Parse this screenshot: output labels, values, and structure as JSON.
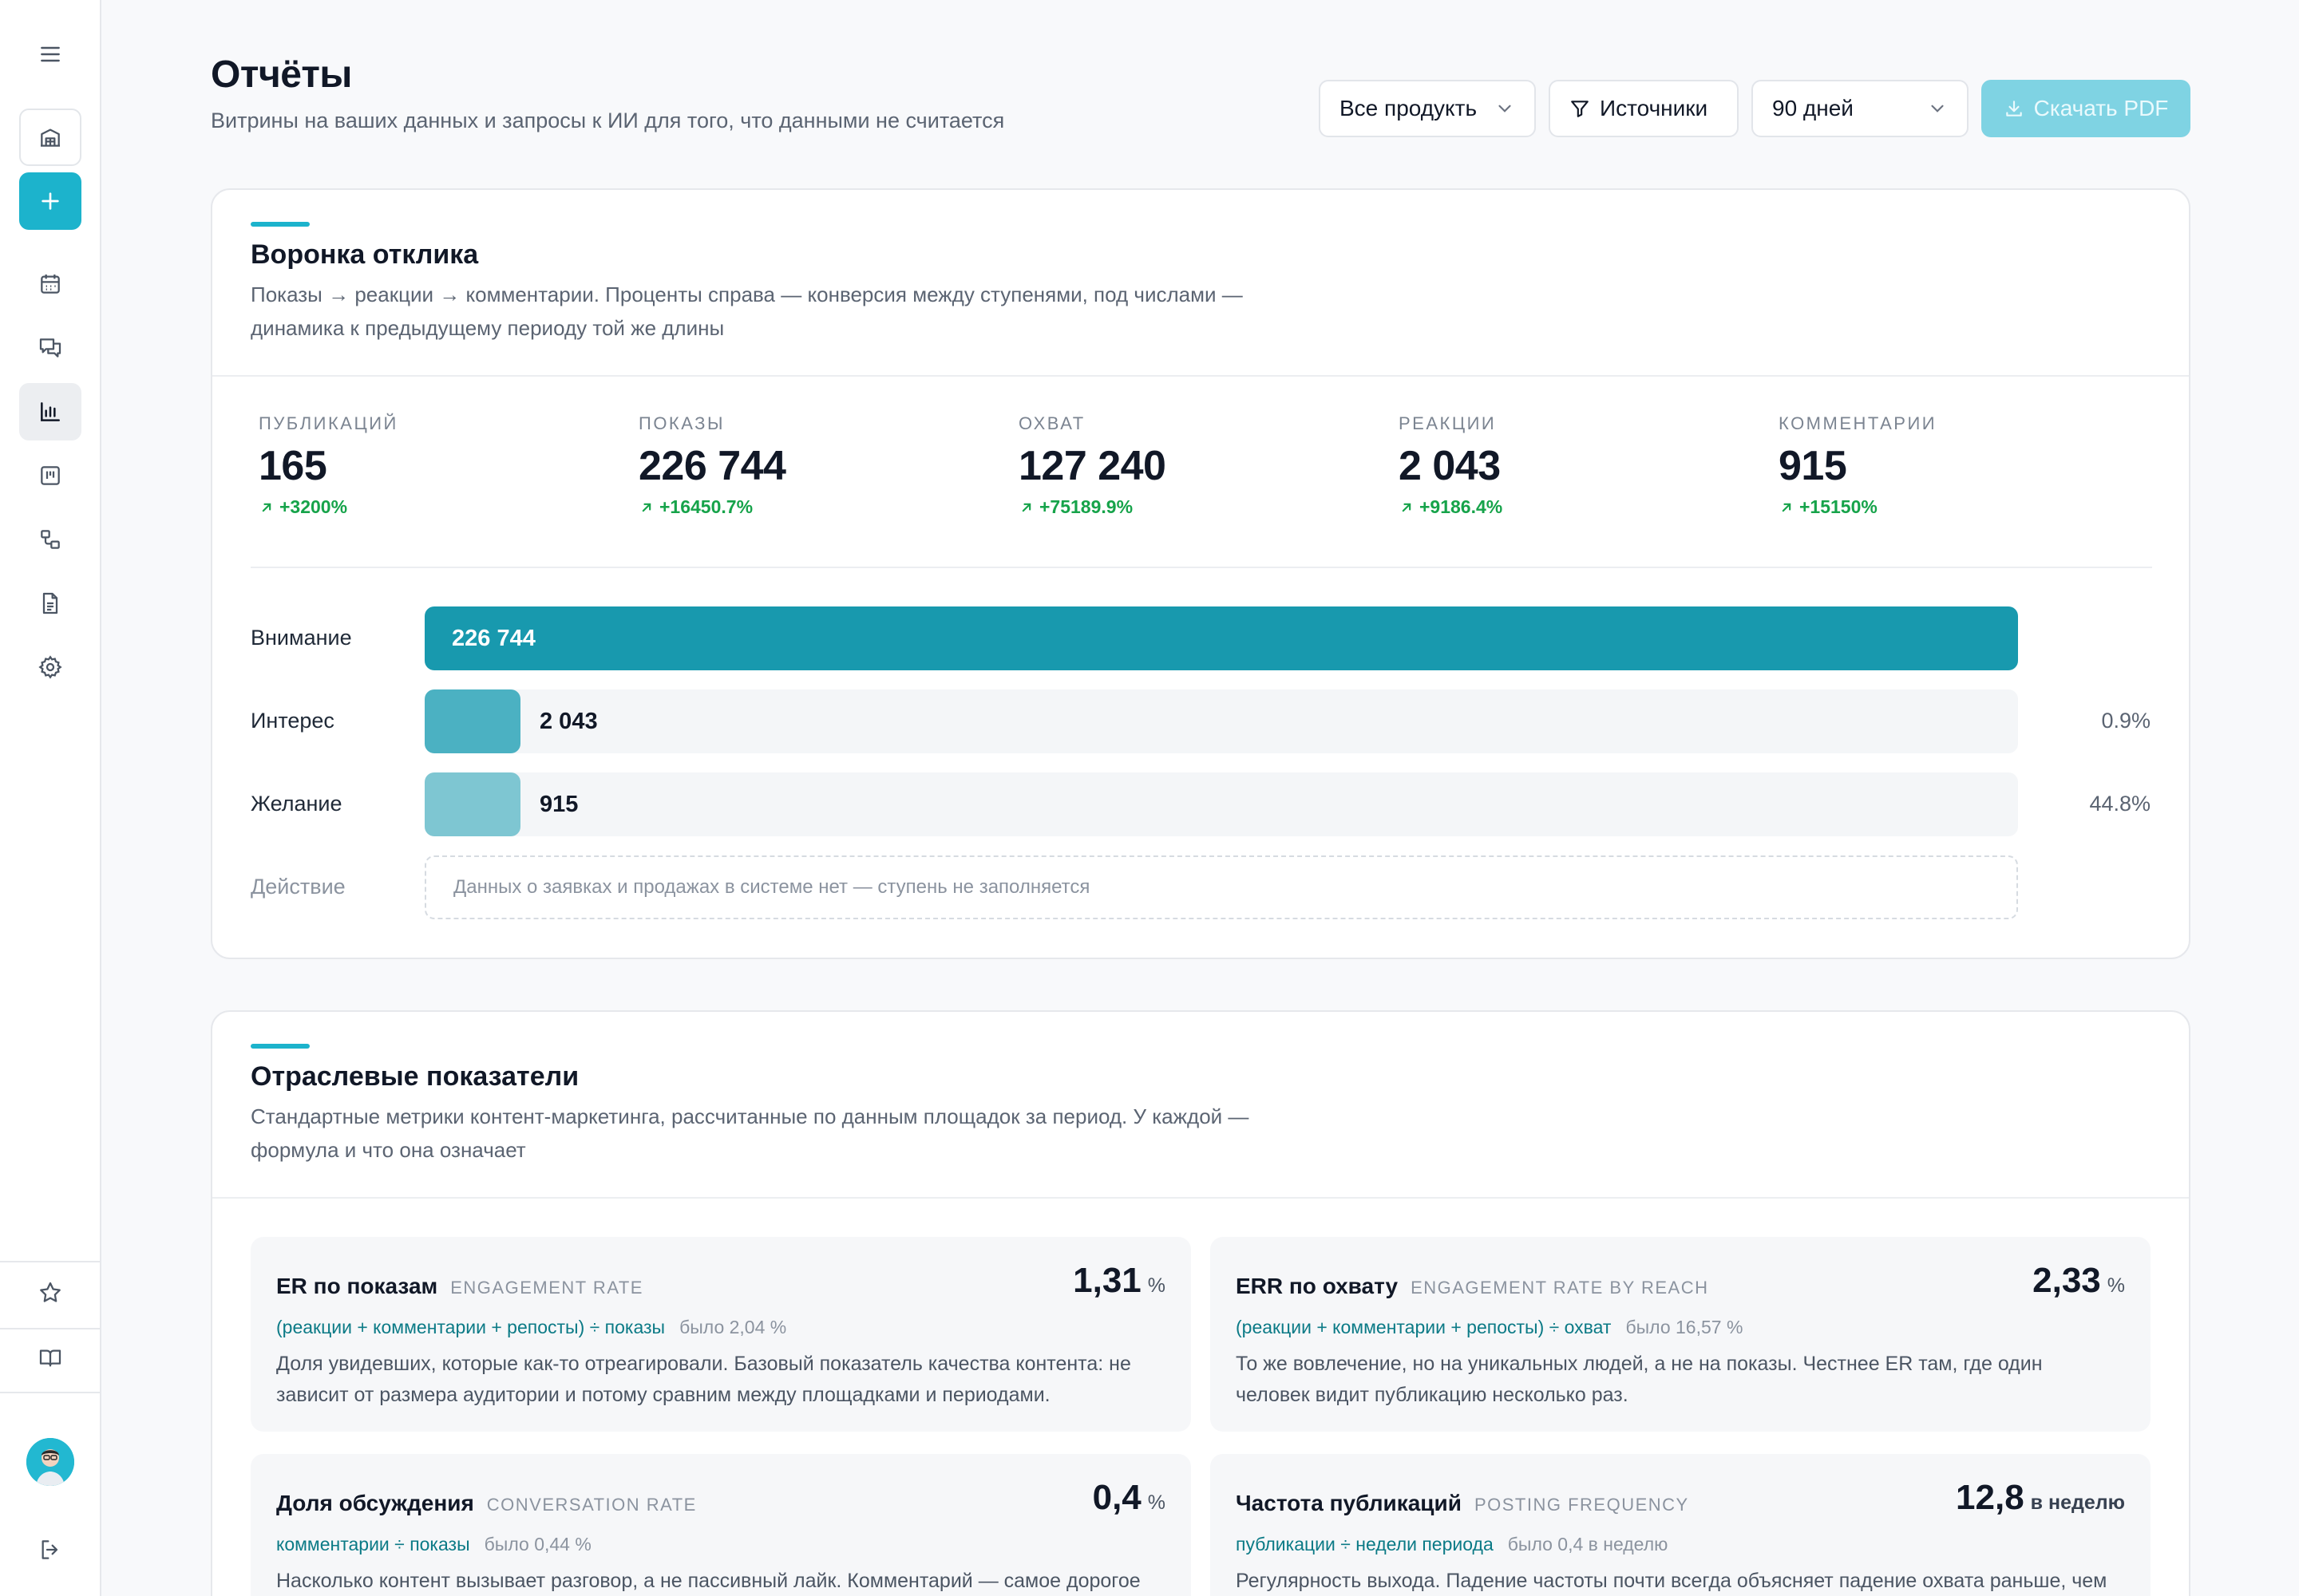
{
  "header": {
    "title": "Отчёты",
    "subtitle": "Витрины на ваших данных и запросы к ИИ для того, что данными не считается",
    "products_filter": "Все продукть",
    "sources_label": "Источники",
    "period": "90 дней",
    "download_label": "Скачать PDF"
  },
  "sidebar": {
    "icons": [
      "menu-icon",
      "building-icon",
      "plus-icon",
      "calendar-icon",
      "chat-icon",
      "bar-chart-icon",
      "kanban-icon",
      "workflow-icon",
      "document-icon",
      "settings-icon",
      "star-icon",
      "book-icon",
      "logout-icon"
    ],
    "active": "bar-chart-icon"
  },
  "funnel_card": {
    "title": "Воронка отклика",
    "description": "Показы → реакции → комментарии. Проценты справа — конверсия между ступенями, под числами — динамика к предыдущему периоду той же длины",
    "stats": [
      {
        "label": "ПУБЛИКАЦИЙ",
        "value": "165",
        "delta": "+3200%"
      },
      {
        "label": "ПОКАЗЫ",
        "value": "226 744",
        "delta": "+16450.7%"
      },
      {
        "label": "ОХВАТ",
        "value": "127 240",
        "delta": "+75189.9%"
      },
      {
        "label": "РЕАКЦИИ",
        "value": "2 043",
        "delta": "+9186.4%"
      },
      {
        "label": "КОММЕНТАРИИ",
        "value": "915",
        "delta": "+15150%"
      }
    ],
    "stages": [
      {
        "label": "Внимание",
        "value": "226 744",
        "fill": 1.0,
        "conversion": "",
        "color": "#1899ae"
      },
      {
        "label": "Интерес",
        "value": "2 043",
        "fill": 0.009,
        "conversion": "0.9%",
        "color": "#4bb1c2"
      },
      {
        "label": "Желание",
        "value": "915",
        "fill": 0.004,
        "conversion": "44.8%",
        "color": "#7ec6d2"
      }
    ],
    "action_stage": {
      "label": "Действие",
      "empty_text": "Данных о заявках и продажах в системе нет — ступень не заполняется"
    }
  },
  "industry_card": {
    "title": "Отраслевые показатели",
    "description": "Стандартные метрики контент-маркетинга, рассчитанные по данным площадок за период. У каждой — формула и что она означает",
    "metrics": [
      {
        "name": "ER по показам",
        "en": "ENGAGEMENT RATE",
        "value": "1,31",
        "unit": "%",
        "formula": "(реакции + комментарии + репосты) ÷ показы",
        "previous": "было 2,04 %",
        "description": "Доля увидевших, которые как-то отреагировали. Базовый показатель качества контента: не зависит от размера аудитории и потому сравним между площадками и периодами."
      },
      {
        "name": "ERR по охвату",
        "en": "ENGAGEMENT RATE BY REACH",
        "value": "2,33",
        "unit": "%",
        "formula": "(реакции + комментарии + репосты) ÷ охват",
        "previous": "было 16,57 %",
        "description": "То же вовлечение, но на уникальных людей, а не на показы. Честнее ER там, где один человек видит публикацию несколько раз."
      },
      {
        "name": "Доля обсуждения",
        "en": "CONVERSATION RATE",
        "value": "0,4",
        "unit": "%",
        "formula": "комментарии ÷ показы",
        "previous": "было 0,44 %",
        "description": "Насколько контент вызывает разговор, а не пассивный лайк. Комментарий — самое дорогое"
      },
      {
        "name": "Частота публикаций",
        "en": "POSTING FREQUENCY",
        "value": "12,8",
        "unit": "в неделю",
        "formula": "публикации ÷ недели периода",
        "previous": "было 0,4 в неделю",
        "description": "Регулярность выхода. Падение частоты почти всегда объясняет падение охвата раньше, чем"
      }
    ]
  }
}
